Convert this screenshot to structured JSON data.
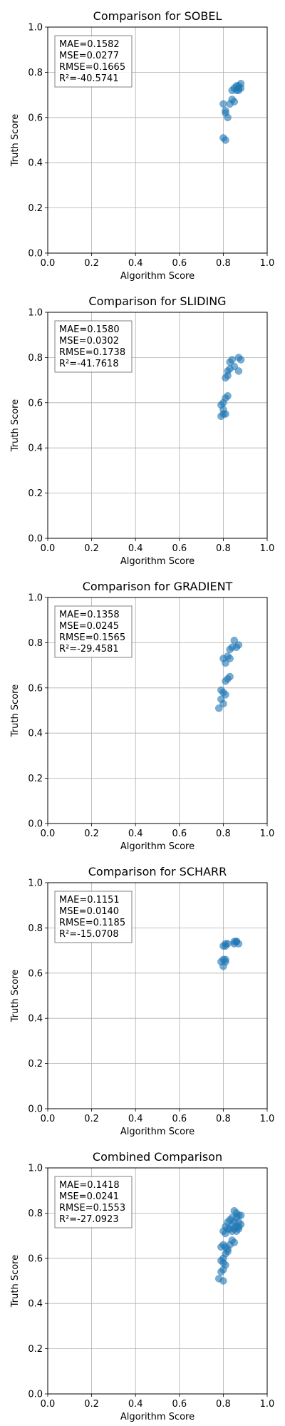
{
  "chart_data": [
    {
      "type": "scatter",
      "title": "Comparison for SOBEL",
      "xlabel": "Algorithm Score",
      "ylabel": "Truth Score",
      "xlim": [
        0,
        1
      ],
      "ylim": [
        0,
        1
      ],
      "xticks": [
        "0.0",
        "0.2",
        "0.4",
        "0.6",
        "0.8",
        "1.0"
      ],
      "yticks": [
        "0.0",
        "0.2",
        "0.4",
        "0.6",
        "0.8",
        "1.0"
      ],
      "grid": true,
      "metrics": [
        "MAE=0.1582",
        "MSE=0.0277",
        "RMSE=0.1665",
        "R²=-40.5741"
      ],
      "points": [
        [
          0.8,
          0.66
        ],
        [
          0.81,
          0.63
        ],
        [
          0.81,
          0.62
        ],
        [
          0.82,
          0.6
        ],
        [
          0.8,
          0.51
        ],
        [
          0.81,
          0.5
        ],
        [
          0.83,
          0.66
        ],
        [
          0.84,
          0.68
        ],
        [
          0.85,
          0.67
        ],
        [
          0.84,
          0.72
        ],
        [
          0.85,
          0.73
        ],
        [
          0.86,
          0.72
        ],
        [
          0.87,
          0.73
        ],
        [
          0.87,
          0.74
        ],
        [
          0.88,
          0.75
        ],
        [
          0.86,
          0.74
        ],
        [
          0.87,
          0.72
        ],
        [
          0.88,
          0.73
        ]
      ]
    },
    {
      "type": "scatter",
      "title": "Comparison for SLIDING",
      "xlabel": "Algorithm Score",
      "ylabel": "Truth Score",
      "xlim": [
        0,
        1
      ],
      "ylim": [
        0,
        1
      ],
      "xticks": [
        "0.0",
        "0.2",
        "0.4",
        "0.6",
        "0.8",
        "1.0"
      ],
      "yticks": [
        "0.0",
        "0.2",
        "0.4",
        "0.6",
        "0.8",
        "1.0"
      ],
      "grid": true,
      "metrics": [
        "MAE=0.1580",
        "MSE=0.0302",
        "RMSE=0.1738",
        "R²=-41.7618"
      ],
      "points": [
        [
          0.79,
          0.59
        ],
        [
          0.8,
          0.57
        ],
        [
          0.8,
          0.55
        ],
        [
          0.79,
          0.54
        ],
        [
          0.81,
          0.55
        ],
        [
          0.8,
          0.6
        ],
        [
          0.81,
          0.62
        ],
        [
          0.82,
          0.63
        ],
        [
          0.81,
          0.71
        ],
        [
          0.82,
          0.72
        ],
        [
          0.82,
          0.74
        ],
        [
          0.83,
          0.75
        ],
        [
          0.83,
          0.78
        ],
        [
          0.84,
          0.79
        ],
        [
          0.85,
          0.76
        ],
        [
          0.87,
          0.74
        ],
        [
          0.88,
          0.79
        ],
        [
          0.87,
          0.8
        ]
      ]
    },
    {
      "type": "scatter",
      "title": "Comparison for GRADIENT",
      "xlabel": "Algorithm Score",
      "ylabel": "Truth Score",
      "xlim": [
        0,
        1
      ],
      "ylim": [
        0,
        1
      ],
      "xticks": [
        "0.0",
        "0.2",
        "0.4",
        "0.6",
        "0.8",
        "1.0"
      ],
      "yticks": [
        "0.0",
        "0.2",
        "0.4",
        "0.6",
        "0.8",
        "1.0"
      ],
      "grid": true,
      "metrics": [
        "MAE=0.1358",
        "MSE=0.0245",
        "RMSE=0.1565",
        "R²=-29.4581"
      ],
      "points": [
        [
          0.78,
          0.51
        ],
        [
          0.8,
          0.53
        ],
        [
          0.79,
          0.55
        ],
        [
          0.8,
          0.58
        ],
        [
          0.79,
          0.59
        ],
        [
          0.81,
          0.57
        ],
        [
          0.81,
          0.63
        ],
        [
          0.82,
          0.64
        ],
        [
          0.83,
          0.65
        ],
        [
          0.8,
          0.73
        ],
        [
          0.81,
          0.71
        ],
        [
          0.82,
          0.74
        ],
        [
          0.83,
          0.73
        ],
        [
          0.83,
          0.77
        ],
        [
          0.84,
          0.78
        ],
        [
          0.86,
          0.78
        ],
        [
          0.85,
          0.81
        ],
        [
          0.87,
          0.79
        ]
      ]
    },
    {
      "type": "scatter",
      "title": "Comparison for SCHARR",
      "xlabel": "Algorithm Score",
      "ylabel": "Truth Score",
      "xlim": [
        0,
        1
      ],
      "ylim": [
        0,
        1
      ],
      "xticks": [
        "0.0",
        "0.2",
        "0.4",
        "0.6",
        "0.8",
        "1.0"
      ],
      "yticks": [
        "0.0",
        "0.2",
        "0.4",
        "0.6",
        "0.8",
        "1.0"
      ],
      "grid": true,
      "metrics": [
        "MAE=0.1151",
        "MSE=0.0140",
        "RMSE=0.1185",
        "R²=-15.0708"
      ],
      "points": [
        [
          0.79,
          0.65
        ],
        [
          0.8,
          0.66
        ],
        [
          0.81,
          0.65
        ],
        [
          0.81,
          0.66
        ],
        [
          0.8,
          0.63
        ],
        [
          0.8,
          0.72
        ],
        [
          0.81,
          0.72
        ],
        [
          0.82,
          0.73
        ],
        [
          0.81,
          0.73
        ],
        [
          0.85,
          0.74
        ],
        [
          0.86,
          0.74
        ],
        [
          0.87,
          0.73
        ],
        [
          0.85,
          0.73
        ],
        [
          0.86,
          0.74
        ]
      ]
    },
    {
      "type": "scatter",
      "title": "Combined Comparison",
      "xlabel": "Algorithm Score",
      "ylabel": "Truth Score",
      "xlim": [
        0,
        1
      ],
      "ylim": [
        0,
        1
      ],
      "xticks": [
        "0.0",
        "0.2",
        "0.4",
        "0.6",
        "0.8",
        "1.0"
      ],
      "yticks": [
        "0.0",
        "0.2",
        "0.4",
        "0.6",
        "0.8",
        "1.0"
      ],
      "grid": true,
      "metrics": [
        "MAE=0.1418",
        "MSE=0.0241",
        "RMSE=0.1553",
        "R²=-27.0923"
      ],
      "points": [
        [
          0.78,
          0.51
        ],
        [
          0.79,
          0.54
        ],
        [
          0.8,
          0.5
        ],
        [
          0.8,
          0.55
        ],
        [
          0.79,
          0.59
        ],
        [
          0.8,
          0.58
        ],
        [
          0.81,
          0.57
        ],
        [
          0.8,
          0.6
        ],
        [
          0.81,
          0.62
        ],
        [
          0.82,
          0.63
        ],
        [
          0.81,
          0.65
        ],
        [
          0.8,
          0.66
        ],
        [
          0.79,
          0.65
        ],
        [
          0.82,
          0.64
        ],
        [
          0.83,
          0.66
        ],
        [
          0.84,
          0.68
        ],
        [
          0.85,
          0.67
        ],
        [
          0.8,
          0.72
        ],
        [
          0.81,
          0.71
        ],
        [
          0.82,
          0.73
        ],
        [
          0.81,
          0.74
        ],
        [
          0.83,
          0.73
        ],
        [
          0.84,
          0.72
        ],
        [
          0.85,
          0.73
        ],
        [
          0.86,
          0.72
        ],
        [
          0.87,
          0.73
        ],
        [
          0.88,
          0.75
        ],
        [
          0.86,
          0.74
        ],
        [
          0.87,
          0.74
        ],
        [
          0.83,
          0.77
        ],
        [
          0.84,
          0.78
        ],
        [
          0.85,
          0.76
        ],
        [
          0.86,
          0.78
        ],
        [
          0.87,
          0.79
        ],
        [
          0.88,
          0.79
        ],
        [
          0.85,
          0.81
        ],
        [
          0.86,
          0.8
        ],
        [
          0.84,
          0.75
        ],
        [
          0.82,
          0.76
        ],
        [
          0.87,
          0.76
        ]
      ]
    }
  ]
}
